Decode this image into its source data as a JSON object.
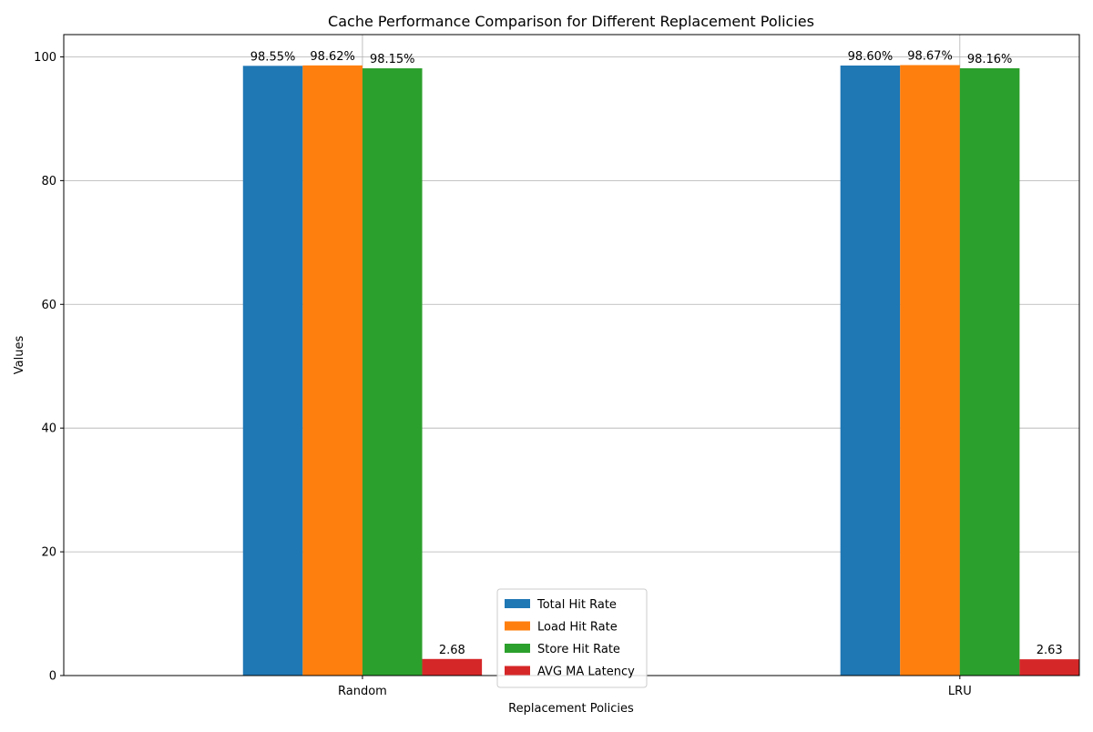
{
  "chart_data": {
    "type": "bar",
    "title": "Cache Performance Comparison for Different Replacement Policies",
    "xlabel": "Replacement Policies",
    "ylabel": "Values",
    "categories": [
      "Random",
      "LRU"
    ],
    "series": [
      {
        "name": "Total Hit Rate",
        "color": "#1f77b4",
        "values": [
          98.55,
          98.6
        ],
        "labels": [
          "98.55%",
          "98.60%"
        ]
      },
      {
        "name": "Load Hit Rate",
        "color": "#ff7f0e",
        "values": [
          98.62,
          98.67
        ],
        "labels": [
          "98.62%",
          "98.67%"
        ]
      },
      {
        "name": "Store Hit Rate",
        "color": "#2ca02c",
        "values": [
          98.15,
          98.16
        ],
        "labels": [
          "98.15%",
          "98.16%"
        ]
      },
      {
        "name": "AVG MA Latency",
        "color": "#d62728",
        "values": [
          2.68,
          2.63
        ],
        "labels": [
          "2.68",
          "2.63"
        ]
      }
    ],
    "ylim": [
      0,
      103.6
    ],
    "yticks": [
      0,
      20,
      40,
      60,
      80,
      100
    ],
    "grid": true,
    "legend_position": "bottom-center"
  }
}
